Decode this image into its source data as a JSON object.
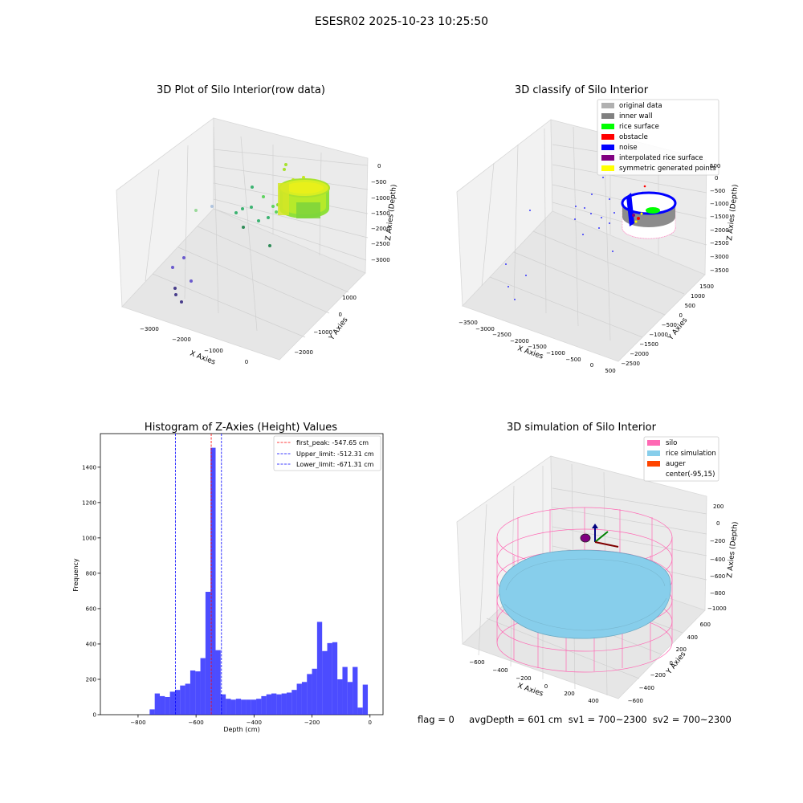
{
  "suptitle": "ESESR02 2025-10-23 10:25:50",
  "status_line": "flag = 0     avgDepth = 601 cm  sv1 = 700~2300  sv2 = 700~2300",
  "colors": {
    "silo": "#ff69b4",
    "rice_simulation": "#87ceeb",
    "auger": "#ff4500",
    "hist_bar": "#0000ff",
    "inner_wall": "#808080",
    "rice_surface": "#00ff00",
    "obstacle": "#ff0000",
    "noise": "#0000ff",
    "interpolated": "#800080",
    "symmetric": "#ffff00",
    "original": "#b0b0b0"
  },
  "chart_data": [
    {
      "type": "scatter",
      "title": "3D Plot of Silo Interior(row data)",
      "xlabel": "X Axies",
      "ylabel": "Y Axies",
      "zlabel": "Z Axies (Depth)",
      "x_ticks": [
        "−3000",
        "−2000",
        "−1000",
        "0"
      ],
      "y_ticks": [
        "1000",
        "0",
        "−1000",
        "−2000"
      ],
      "z_ticks": [
        "0",
        "−500",
        "−1000",
        "−1500",
        "−2000",
        "−2500",
        "−3000"
      ],
      "colormap": "viridis"
    },
    {
      "type": "scatter",
      "title": "3D classify of Silo Interior",
      "xlabel": "X Axies",
      "ylabel": "Y Axies",
      "zlabel": "Z Axies (Depth)",
      "x_ticks": [
        "−3500",
        "−3000",
        "−2500",
        "−2000",
        "−1500",
        "−1000",
        "−500",
        "0",
        "500"
      ],
      "y_ticks": [
        "1500",
        "1000",
        "500",
        "0",
        "−500",
        "−1000",
        "−1500",
        "−2000",
        "−2500"
      ],
      "z_ticks": [
        "500",
        "0",
        "−500",
        "−1000",
        "−1500",
        "−2000",
        "−2500",
        "−3000",
        "−3500"
      ],
      "legend": [
        "original data",
        "inner wall",
        "rice surface",
        "obstacle",
        "noise",
        "interpolated rice surface",
        "symmetric generated points"
      ],
      "legend_placement": "top-right"
    },
    {
      "type": "bar",
      "title": "Histogram of Z-Axies (Height) Values",
      "xlabel": "Depth (cm)",
      "ylabel": "Frequency",
      "xlim": [
        -930,
        45
      ],
      "ylim": [
        0,
        1590
      ],
      "x_ticks": [
        -800,
        -600,
        -400,
        -200,
        0
      ],
      "x_tick_labels": [
        "−800",
        "−600",
        "−400",
        "−200",
        "0"
      ],
      "y_ticks": [
        0,
        200,
        400,
        600,
        800,
        1000,
        1200,
        1400
      ],
      "y_tick_labels": [
        "0",
        "200",
        "400",
        "600",
        "800",
        "1000",
        "1200",
        "1400"
      ],
      "bin_start": -760,
      "bin_width": 17.5,
      "values": [
        30,
        120,
        105,
        100,
        130,
        140,
        165,
        175,
        250,
        245,
        320,
        695,
        1510,
        365,
        115,
        90,
        85,
        90,
        85,
        85,
        85,
        90,
        105,
        115,
        120,
        115,
        120,
        125,
        140,
        175,
        185,
        230,
        260,
        525,
        360,
        405,
        410,
        200,
        270,
        185,
        270,
        40,
        170
      ],
      "vlines": [
        {
          "label": "first_peak: -547.65 cm",
          "value": -547.65,
          "color": "#ff0000"
        },
        {
          "label": "Upper_limit: -512.31 cm",
          "value": -512.31,
          "color": "#0000ff"
        },
        {
          "label": "Lower_limit: -671.31 cm",
          "value": -671.31,
          "color": "#0000ff"
        }
      ],
      "legend_placement": "top-right"
    },
    {
      "type": "scatter",
      "title": "3D simulation of Silo Interior",
      "xlabel": "X Axies",
      "ylabel": "Y Axies",
      "zlabel": "Z Axies (Depth)",
      "x_ticks": [
        "−600",
        "−400",
        "−200",
        "0",
        "200",
        "400"
      ],
      "y_ticks": [
        "600",
        "400",
        "200",
        "0",
        "−200",
        "−400",
        "−600"
      ],
      "z_ticks": [
        "200",
        "0",
        "−200",
        "−400",
        "−600",
        "−800",
        "−1000"
      ],
      "legend": [
        "silo",
        "rice simulation",
        "auger",
        "center(-95,15)"
      ],
      "legend_placement": "top-right"
    }
  ]
}
